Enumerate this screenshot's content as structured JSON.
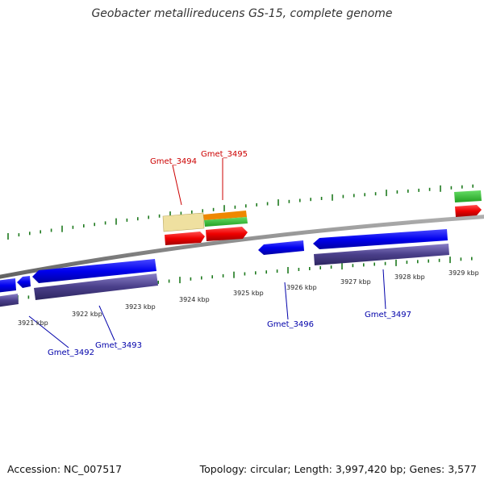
{
  "title": "Geobacter metallireducens GS-15, complete genome",
  "footer": {
    "accession": "Accession: NC_007517",
    "topology": "Topology: circular; Length: 3,997,420 bp; Genes: 3,577"
  },
  "ticks": [
    {
      "label": "3921 kbp"
    },
    {
      "label": "3922 kbp"
    },
    {
      "label": "3923 kbp"
    },
    {
      "label": "3924 kbp"
    },
    {
      "label": "3925 kbp"
    },
    {
      "label": "3926 kbp"
    },
    {
      "label": "3927 kbp"
    },
    {
      "label": "3928 kbp"
    },
    {
      "label": "3929 kbp"
    }
  ],
  "gene_labels": {
    "top": [
      {
        "name": "Gmet_3494",
        "color": "#cc0000"
      },
      {
        "name": "Gmet_3495",
        "color": "#cc0000"
      }
    ],
    "bottom": [
      {
        "name": "Gmet_3492",
        "color": "#0000aa"
      },
      {
        "name": "Gmet_3493",
        "color": "#0000aa"
      },
      {
        "name": "Gmet_3496",
        "color": "#0000aa"
      },
      {
        "name": "Gmet_3497",
        "color": "#0000aa"
      }
    ]
  },
  "colors": {
    "backbone": "#888888",
    "tick": "#1e7a1e",
    "cds_reverse": "#0000ee",
    "cds_forward": "#ee0000",
    "feature_reverse": "#4a3f8a",
    "feature_green": "#33bb33",
    "feature_orange": "#ee8800",
    "feature_beige": "#efe0a0"
  }
}
